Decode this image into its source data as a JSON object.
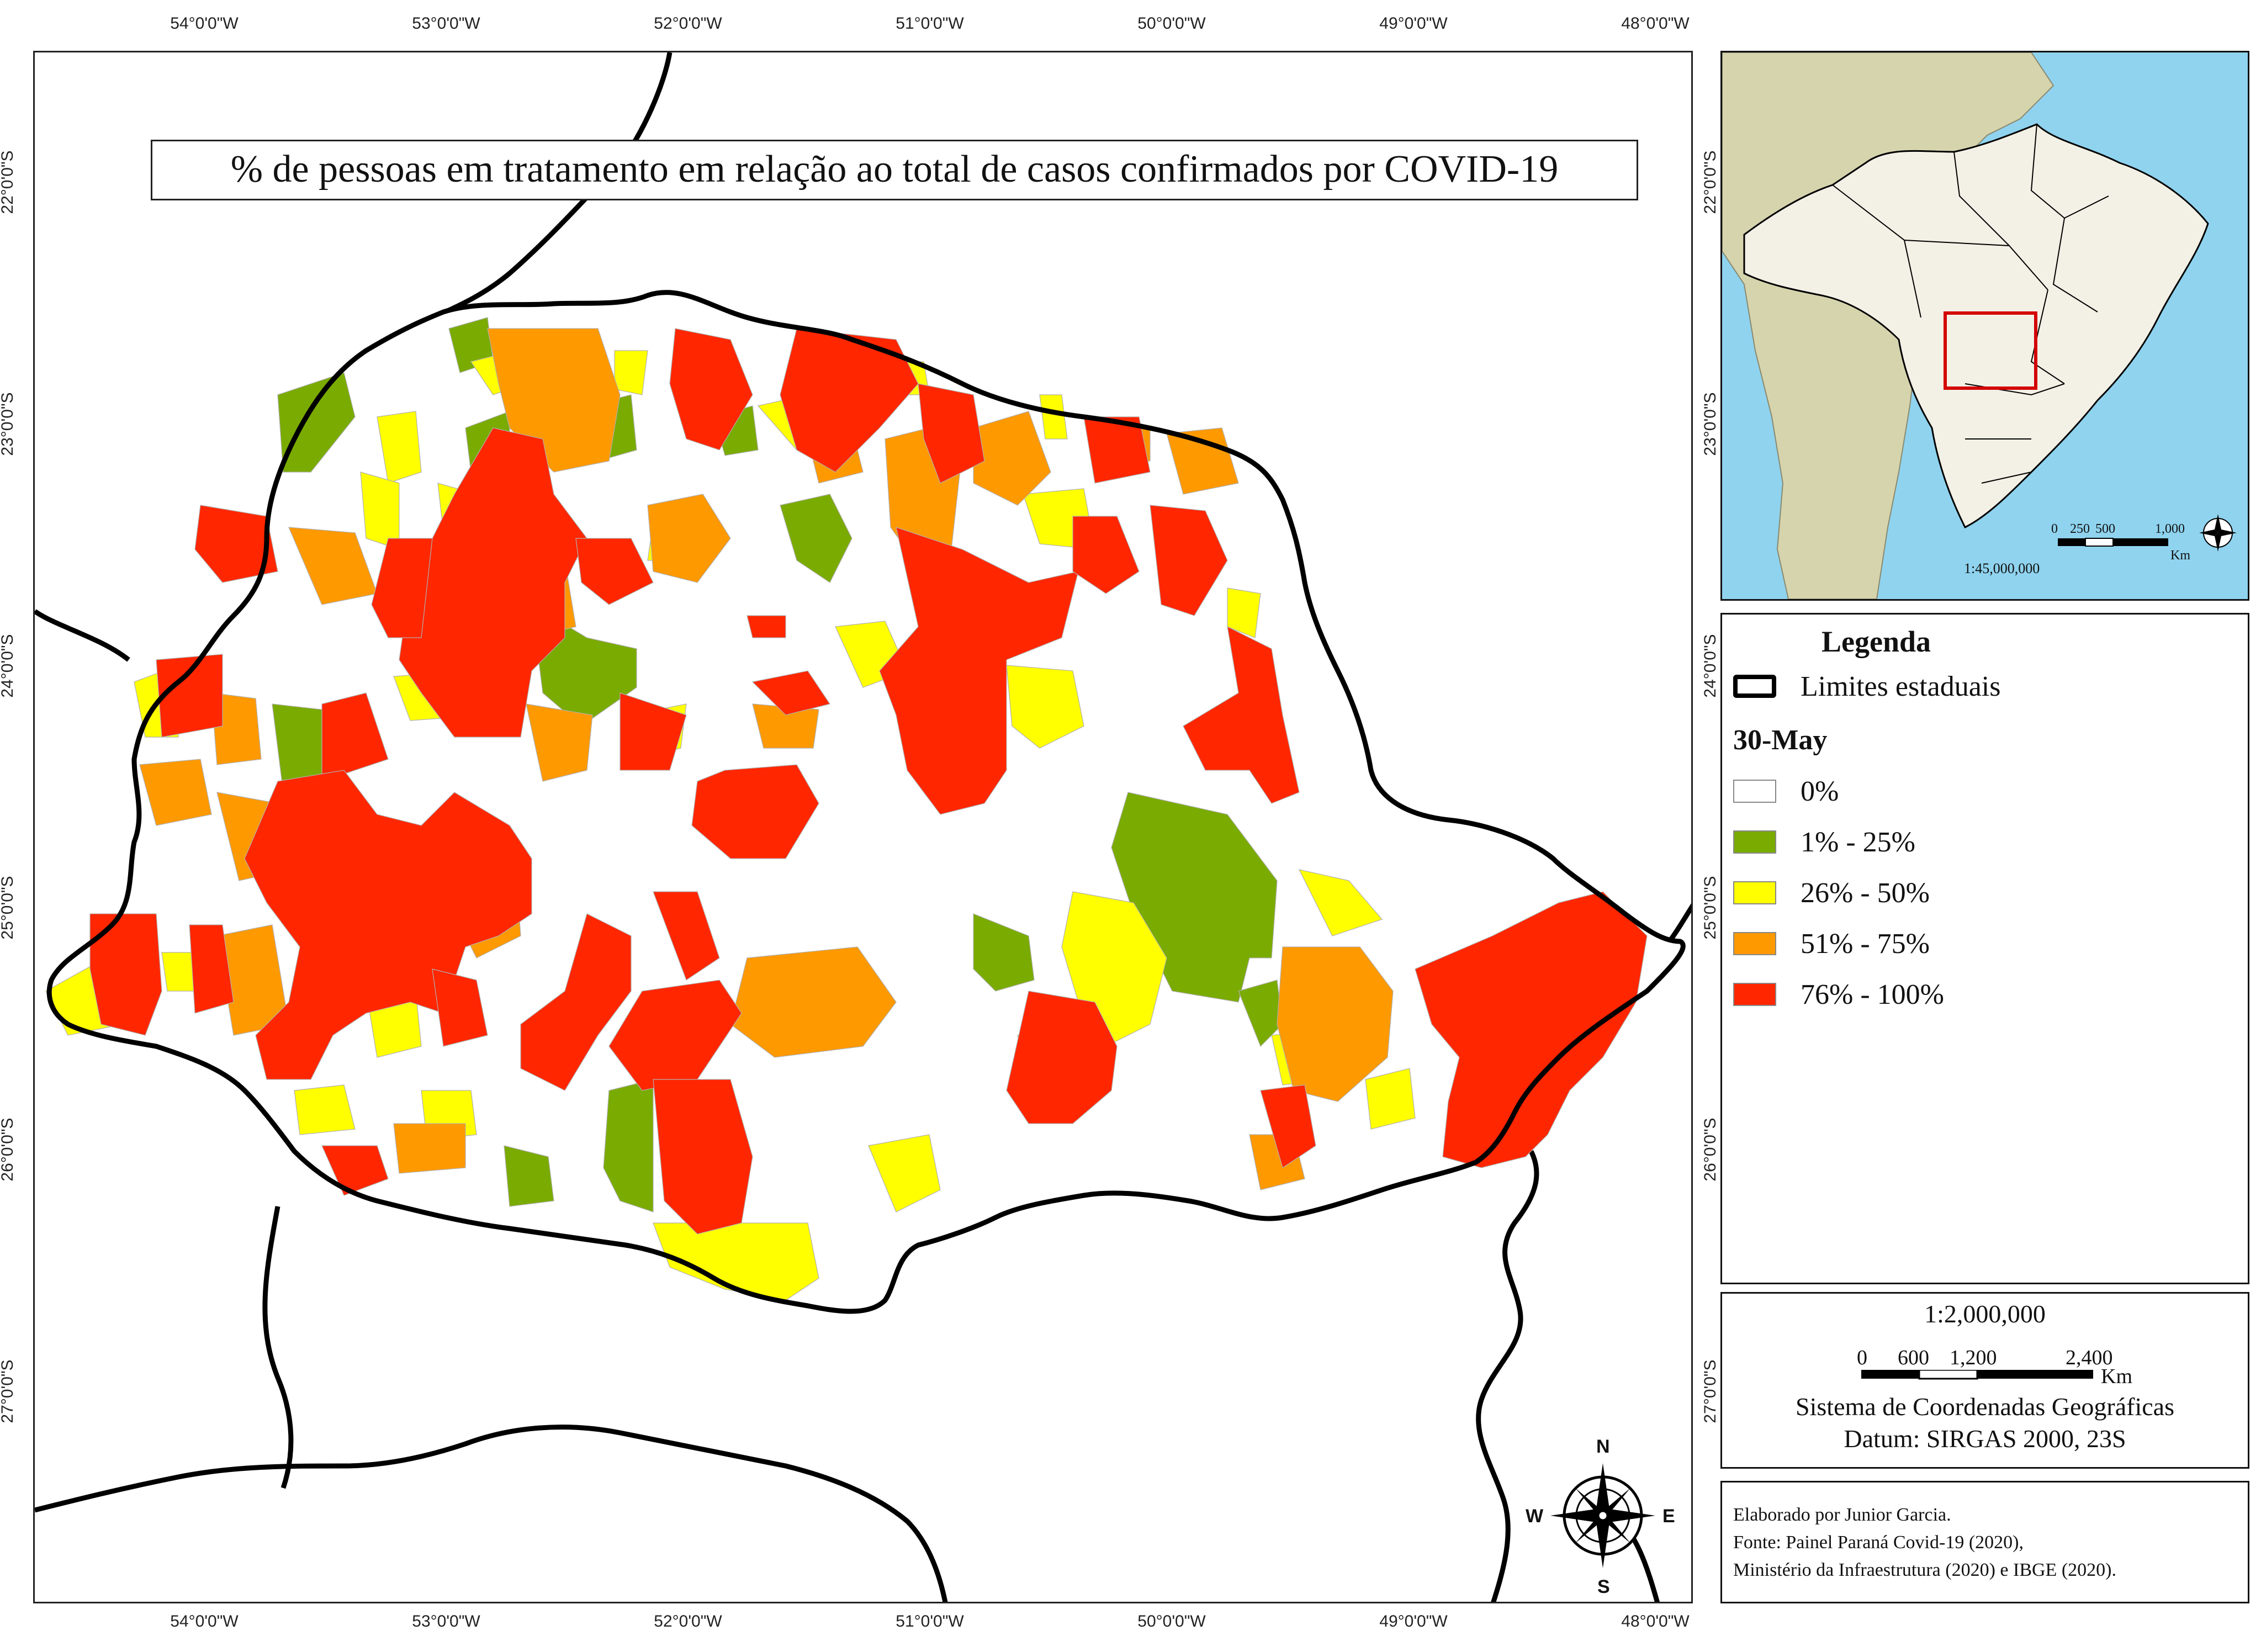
{
  "title": "% de pessoas em tratamento em relação ao total de casos confirmados por COVID-19",
  "longitude_ticks": [
    "54°0'0\"W",
    "53°0'0\"W",
    "52°0'0\"W",
    "51°0'0\"W",
    "50°0'0\"W",
    "49°0'0\"W",
    "48°0'0\"W"
  ],
  "latitude_ticks": [
    "22°0'0\"S",
    "23°0'0\"S",
    "24°0'0\"S",
    "25°0'0\"S",
    "26°0'0\"S",
    "27°0'0\"S"
  ],
  "legend": {
    "title": "Legenda",
    "boundary_label": "Limites estaduais",
    "date": "30-May",
    "classes": [
      {
        "label": "0%",
        "color": "#ffffff"
      },
      {
        "label": "1% - 25%",
        "color": "#7aab00"
      },
      {
        "label": "26% - 50%",
        "color": "#ffff00"
      },
      {
        "label": "51% - 75%",
        "color": "#ff9900"
      },
      {
        "label": "76% - 100%",
        "color": "#ff2600"
      }
    ]
  },
  "scale": {
    "ratio": "1:2,000,000",
    "ticks": [
      "0",
      "600",
      "1,200",
      "2,400"
    ],
    "unit": "Km",
    "crs": "Sistema de Coordenadas Geográficas",
    "datum": "Datum: SIRGAS 2000, 23S"
  },
  "inset": {
    "ratio": "1:45,000,000",
    "ticks": [
      "0",
      "250",
      "500",
      "1,000"
    ],
    "unit": "Km",
    "ocean_color": "#8fd3ef",
    "land_color": "#d6d4ad",
    "brazil_color": "#f3f1e6",
    "highlight_color": "#d40000"
  },
  "compass": {
    "n": "N",
    "s": "S",
    "e": "E",
    "w": "W"
  },
  "credits": [
    "Elaborado por Junior Garcia.",
    "Fonte: Painel Paraná Covid-19 (2020),",
    "Ministério da Infraestrutura (2020) e IBGE (2020)."
  ]
}
